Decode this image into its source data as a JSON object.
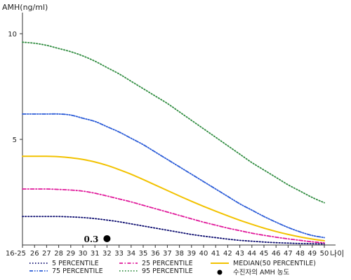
{
  "chart_data": {
    "type": "line",
    "ylabel": "AMH(ng/ml)",
    "xlabel": "나이",
    "categories": [
      "16-25",
      "26",
      "27",
      "28",
      "29",
      "30",
      "31",
      "32",
      "33",
      "34",
      "35",
      "36",
      "37",
      "38",
      "39",
      "40",
      "41",
      "42",
      "43",
      "44",
      "45",
      "46",
      "47",
      "48",
      "49",
      "50"
    ],
    "ylim": [
      0,
      11
    ],
    "yticks": [
      5,
      10
    ],
    "grid": false,
    "legend_position": "bottom",
    "series": [
      {
        "name": "5 PERCENTILE",
        "color": "#0a0a6e",
        "dash": "dotted",
        "values": [
          1.35,
          1.35,
          1.35,
          1.35,
          1.33,
          1.3,
          1.25,
          1.18,
          1.1,
          1.0,
          0.9,
          0.8,
          0.7,
          0.6,
          0.5,
          0.42,
          0.35,
          0.28,
          0.22,
          0.18,
          0.14,
          0.11,
          0.09,
          0.07,
          0.06,
          0.05
        ]
      },
      {
        "name": "25 PERCENTILE",
        "color": "#e0189a",
        "dash": "dashdot",
        "values": [
          2.65,
          2.65,
          2.65,
          2.63,
          2.6,
          2.55,
          2.45,
          2.32,
          2.18,
          2.04,
          1.88,
          1.72,
          1.56,
          1.4,
          1.24,
          1.08,
          0.94,
          0.8,
          0.68,
          0.56,
          0.46,
          0.37,
          0.29,
          0.22,
          0.15,
          0.1
        ]
      },
      {
        "name": "MEDIAN(50 PERCENTILE)",
        "color": "#f2c200",
        "dash": "solid",
        "values": [
          4.2,
          4.2,
          4.2,
          4.18,
          4.13,
          4.05,
          3.93,
          3.77,
          3.57,
          3.35,
          3.1,
          2.84,
          2.58,
          2.32,
          2.07,
          1.83,
          1.6,
          1.38,
          1.17,
          0.98,
          0.8,
          0.64,
          0.5,
          0.38,
          0.28,
          0.2
        ]
      },
      {
        "name": "75 PERCENTILE",
        "color": "#2a5bd7",
        "dash": "dashdotdot",
        "values": [
          6.2,
          6.2,
          6.2,
          6.2,
          6.15,
          6.0,
          5.85,
          5.6,
          5.35,
          5.05,
          4.75,
          4.4,
          4.05,
          3.7,
          3.35,
          3.0,
          2.65,
          2.3,
          1.95,
          1.65,
          1.35,
          1.08,
          0.83,
          0.62,
          0.45,
          0.35
        ]
      },
      {
        "name": "95 PERCENTILE",
        "color": "#2e8b3e",
        "dash": "dotted",
        "values": [
          9.6,
          9.55,
          9.45,
          9.3,
          9.15,
          8.95,
          8.7,
          8.4,
          8.1,
          7.75,
          7.4,
          7.05,
          6.7,
          6.3,
          5.9,
          5.5,
          5.1,
          4.7,
          4.3,
          3.9,
          3.55,
          3.2,
          2.85,
          2.55,
          2.25,
          2.0
        ]
      }
    ],
    "marker": {
      "name": "수진자의 AMH 농도",
      "x": "32",
      "y": 0.3,
      "label": "0.3",
      "color": "#000000"
    }
  }
}
